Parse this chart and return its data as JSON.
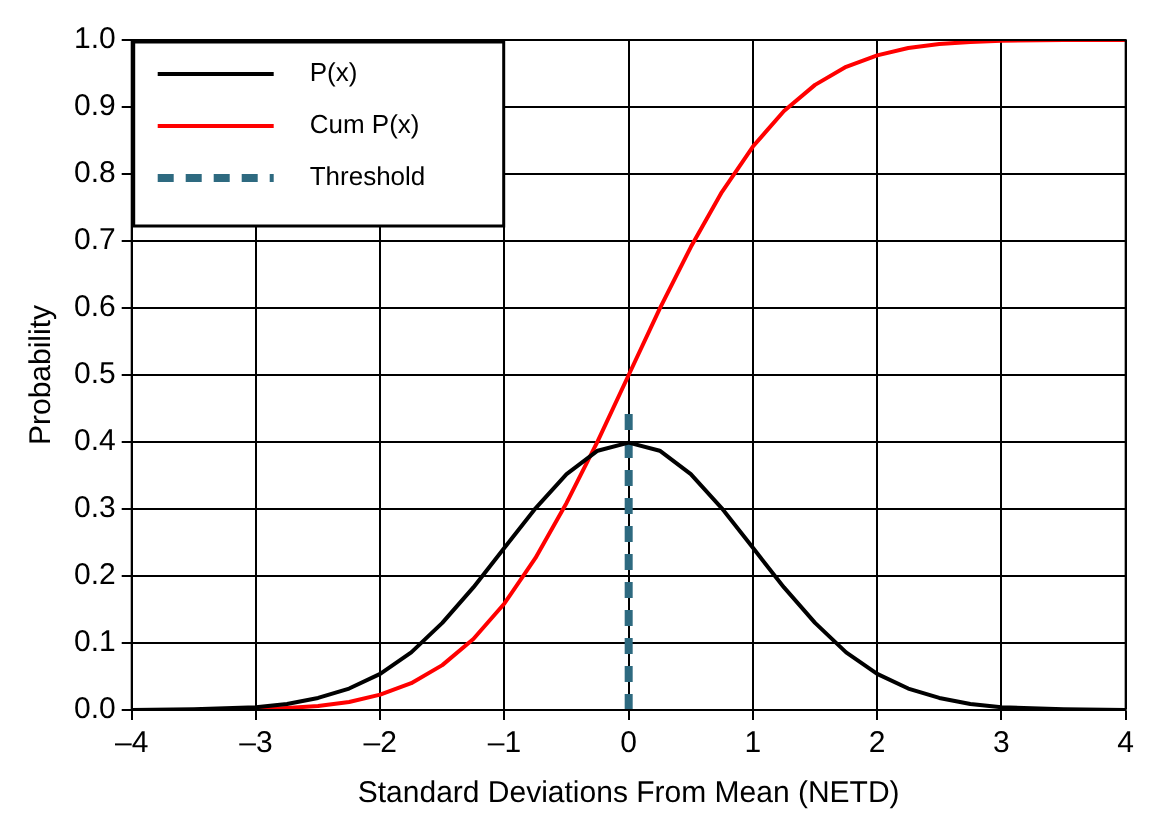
{
  "chart_data": {
    "type": "line",
    "xlabel": "Standard Deviations From Mean (NETD)",
    "ylabel": "Probability",
    "xlim": [
      -4,
      4
    ],
    "xticks": [
      {
        "value": -4,
        "label": "–4"
      },
      {
        "value": -3,
        "label": "–3"
      },
      {
        "value": -2,
        "label": "–2"
      },
      {
        "value": -1,
        "label": "–1"
      },
      0,
      1,
      2,
      3,
      4
    ],
    "ylim": [
      0,
      1
    ],
    "yticks": [
      {
        "value": 0,
        "label": "0.0"
      },
      0.1,
      0.2,
      0.3,
      0.4,
      0.5,
      0.6,
      0.7,
      0.8,
      0.9,
      {
        "value": 1,
        "label": "1.0"
      }
    ],
    "grid": true,
    "legend": "top left",
    "marker": "none",
    "series": [
      {
        "name": "P(x)",
        "color": "#000000",
        "x": [
          -4,
          -3.5,
          -3,
          -2.75,
          -2.5,
          -2.25,
          -2,
          -1.75,
          -1.5,
          -1.25,
          -1,
          -0.75,
          -0.5,
          -0.25,
          0,
          0.25,
          0.5,
          0.75,
          1,
          1.25,
          1.5,
          1.75,
          2,
          2.25,
          2.5,
          2.75,
          3,
          3.5,
          4
        ],
        "values": [
          0,
          0.001,
          0.004,
          0.009,
          0.018,
          0.032,
          0.054,
          0.086,
          0.13,
          0.183,
          0.242,
          0.301,
          0.352,
          0.387,
          0.399,
          0.387,
          0.352,
          0.301,
          0.242,
          0.183,
          0.13,
          0.086,
          0.054,
          0.032,
          0.018,
          0.009,
          0.004,
          0.001,
          0
        ]
      },
      {
        "name": "Cum P(x)",
        "color": "#ff0000",
        "x": [
          -4,
          -3.5,
          -3,
          -2.75,
          -2.5,
          -2.25,
          -2,
          -1.75,
          -1.5,
          -1.25,
          -1,
          -0.75,
          -0.5,
          -0.25,
          0,
          0.25,
          0.5,
          0.75,
          1,
          1.25,
          1.5,
          1.75,
          2,
          2.25,
          2.5,
          2.75,
          3,
          3.5,
          4
        ],
        "values": [
          0,
          0,
          0.001,
          0.003,
          0.006,
          0.012,
          0.023,
          0.04,
          0.067,
          0.106,
          0.159,
          0.227,
          0.309,
          0.401,
          0.5,
          0.599,
          0.691,
          0.773,
          0.841,
          0.894,
          0.933,
          0.96,
          0.977,
          0.988,
          0.994,
          0.997,
          0.999,
          1,
          1
        ]
      },
      {
        "name": "Threshold",
        "color": "#2e6a80",
        "line_style": "dashed",
        "x": [
          0,
          0
        ],
        "values": [
          0,
          0.45
        ]
      }
    ]
  }
}
